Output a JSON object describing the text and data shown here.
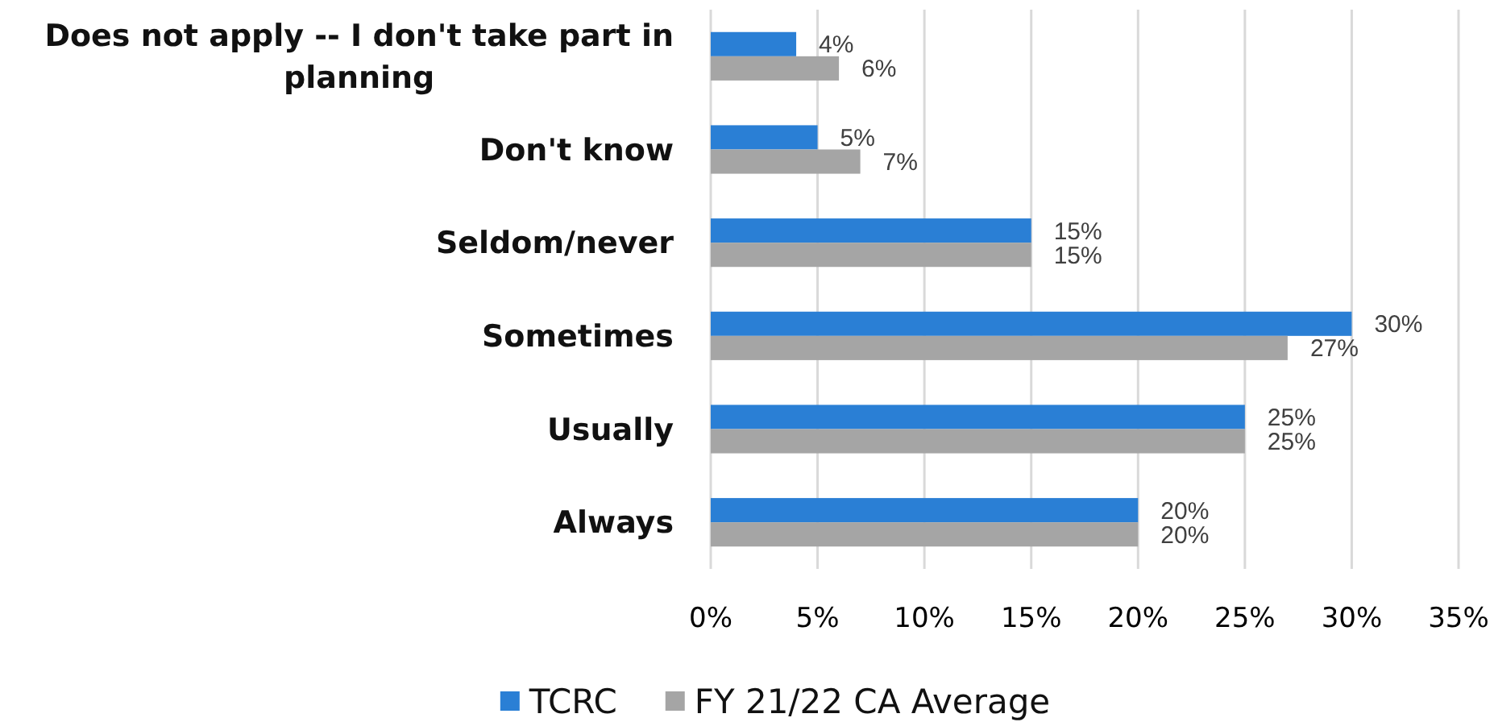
{
  "chart_data": {
    "type": "bar",
    "orientation": "horizontal",
    "categories": [
      "Does not apply -- I don't take part in planning",
      "Don't know",
      "Seldom/never",
      "Sometimes",
      "Usually",
      "Always"
    ],
    "series": [
      {
        "name": "TCRC",
        "color": "#2a7fd5",
        "values": [
          4,
          5,
          15,
          30,
          25,
          20
        ],
        "value_labels": [
          "4%",
          "5%",
          "15%",
          "30%",
          "25%",
          "20%"
        ]
      },
      {
        "name": "FY 21/22 CA Average",
        "color": "#a5a5a5",
        "values": [
          6,
          7,
          15,
          27,
          25,
          20
        ],
        "value_labels": [
          "6%",
          "7%",
          "15%",
          "27%",
          "25%",
          "20%"
        ]
      }
    ],
    "xlim": [
      0,
      35
    ],
    "xticks": [
      {
        "value": 0,
        "label": "0%"
      },
      {
        "value": 5,
        "label": "5%"
      },
      {
        "value": 10,
        "label": "10%"
      },
      {
        "value": 15,
        "label": "15%"
      },
      {
        "value": 20,
        "label": "20%"
      },
      {
        "value": 25,
        "label": "25%"
      },
      {
        "value": 30,
        "label": "30%"
      },
      {
        "value": 35,
        "label": "35%"
      }
    ],
    "grid": "x",
    "legend": "bottom"
  }
}
